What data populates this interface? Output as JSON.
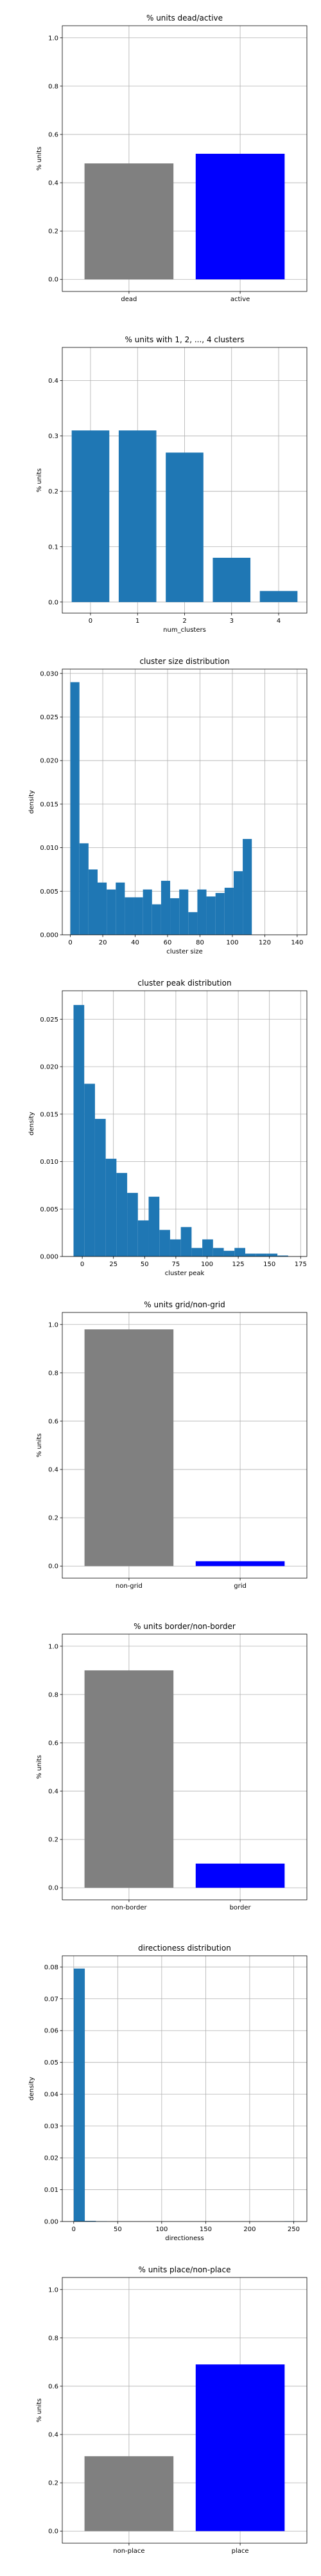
{
  "colors": {
    "gray": "#808080",
    "blue": "#0000ff",
    "steel": "#1f77b4",
    "grid": "#b0b0b0"
  },
  "chart_data": [
    {
      "type": "bar",
      "title": "% units dead/active",
      "xlabel": "",
      "ylabel": "% units",
      "categories": [
        "dead",
        "active"
      ],
      "values": [
        0.48,
        0.52
      ],
      "bar_colors": [
        "#808080",
        "#0000ff"
      ],
      "ylim": [
        -0.05,
        1.05
      ],
      "yticks": [
        0.0,
        0.2,
        0.4,
        0.6,
        0.8,
        1.0
      ],
      "grid": true
    },
    {
      "type": "bar",
      "title": "% units with 1, 2, ..., 4 clusters",
      "xlabel": "num_clusters",
      "ylabel": "% units",
      "categories": [
        "0",
        "1",
        "2",
        "3",
        "4"
      ],
      "values": [
        0.31,
        0.31,
        0.27,
        0.08,
        0.02
      ],
      "bar_colors": [
        "#1f77b4",
        "#1f77b4",
        "#1f77b4",
        "#1f77b4",
        "#1f77b4"
      ],
      "ylim": [
        -0.02,
        0.46
      ],
      "yticks": [
        0.0,
        0.1,
        0.2,
        0.3,
        0.4
      ],
      "grid": true
    },
    {
      "type": "histogram",
      "title": "cluster size distribution",
      "xlabel": "cluster size",
      "ylabel": "density",
      "bin_start": 0,
      "bin_width": 5.6,
      "values": [
        0.029,
        0.0105,
        0.0075,
        0.006,
        0.0052,
        0.006,
        0.0043,
        0.0043,
        0.0052,
        0.0035,
        0.0062,
        0.0042,
        0.0052,
        0.0026,
        0.0052,
        0.0044,
        0.0048,
        0.0054,
        0.0073,
        0.011
      ],
      "xlim": [
        -5,
        146
      ],
      "ylim": [
        0,
        0.0305
      ],
      "xticks": [
        0,
        20,
        40,
        60,
        80,
        100,
        120,
        140
      ],
      "yticks": [
        0.0,
        0.005,
        0.01,
        0.015,
        0.02,
        0.025,
        0.03
      ],
      "ytick_labels": [
        "0.000",
        "0.005",
        "0.010",
        "0.015",
        "0.020",
        "0.025",
        "0.030"
      ],
      "grid": true
    },
    {
      "type": "histogram",
      "title": "cluster peak distribution",
      "xlabel": "cluster peak",
      "ylabel": "density",
      "bin_start": -7,
      "bin_width": 8.6,
      "values": [
        0.0265,
        0.0182,
        0.0145,
        0.0103,
        0.0088,
        0.0067,
        0.0038,
        0.0063,
        0.0028,
        0.0018,
        0.0031,
        0.0009,
        0.0018,
        0.0009,
        0.0006,
        0.0009,
        0.0003,
        0.0003,
        0.0003,
        0.0001
      ],
      "xlim": [
        -16,
        180
      ],
      "ylim": [
        0,
        0.028
      ],
      "xticks": [
        0,
        25,
        50,
        75,
        100,
        125,
        150,
        175
      ],
      "yticks": [
        0.0,
        0.005,
        0.01,
        0.015,
        0.02,
        0.025
      ],
      "ytick_labels": [
        "0.000",
        "0.005",
        "0.010",
        "0.015",
        "0.020",
        "0.025"
      ],
      "grid": true
    },
    {
      "type": "bar",
      "title": "% units grid/non-grid",
      "xlabel": "",
      "ylabel": "% units",
      "categories": [
        "non-grid",
        "grid"
      ],
      "values": [
        0.98,
        0.02
      ],
      "bar_colors": [
        "#808080",
        "#0000ff"
      ],
      "ylim": [
        -0.05,
        1.05
      ],
      "yticks": [
        0.0,
        0.2,
        0.4,
        0.6,
        0.8,
        1.0
      ],
      "grid": true
    },
    {
      "type": "bar",
      "title": "% units border/non-border",
      "xlabel": "",
      "ylabel": "% units",
      "categories": [
        "non-border",
        "border"
      ],
      "values": [
        0.9,
        0.1
      ],
      "bar_colors": [
        "#808080",
        "#0000ff"
      ],
      "ylim": [
        -0.05,
        1.05
      ],
      "yticks": [
        0.0,
        0.2,
        0.4,
        0.6,
        0.8,
        1.0
      ],
      "grid": true
    },
    {
      "type": "histogram",
      "title": "directioness distribution",
      "xlabel": "directioness",
      "ylabel": "density",
      "bin_start": 0,
      "bin_width": 12.6,
      "values": [
        0.0795,
        0.0002,
        0.0001,
        0.0,
        0.0,
        0.0,
        0.0,
        0.0,
        0.0,
        0.0,
        0.0,
        0.0,
        0.0,
        0.0,
        0.0,
        0.0,
        0.0,
        0.0,
        0.0,
        0.0001
      ],
      "xlim": [
        -13,
        265
      ],
      "ylim": [
        0,
        0.0835
      ],
      "xticks": [
        0,
        50,
        100,
        150,
        200,
        250
      ],
      "yticks": [
        0.0,
        0.01,
        0.02,
        0.03,
        0.04,
        0.05,
        0.06,
        0.07,
        0.08
      ],
      "ytick_labels": [
        "0.00",
        "0.01",
        "0.02",
        "0.03",
        "0.04",
        "0.05",
        "0.06",
        "0.07",
        "0.08"
      ],
      "grid": true
    },
    {
      "type": "bar",
      "title": "% units place/non-place",
      "xlabel": "",
      "ylabel": "% units",
      "categories": [
        "non-place",
        "place"
      ],
      "values": [
        0.31,
        0.69
      ],
      "bar_colors": [
        "#808080",
        "#0000ff"
      ],
      "ylim": [
        -0.05,
        1.05
      ],
      "yticks": [
        0.0,
        0.2,
        0.4,
        0.6,
        0.8,
        1.0
      ],
      "grid": true
    }
  ]
}
